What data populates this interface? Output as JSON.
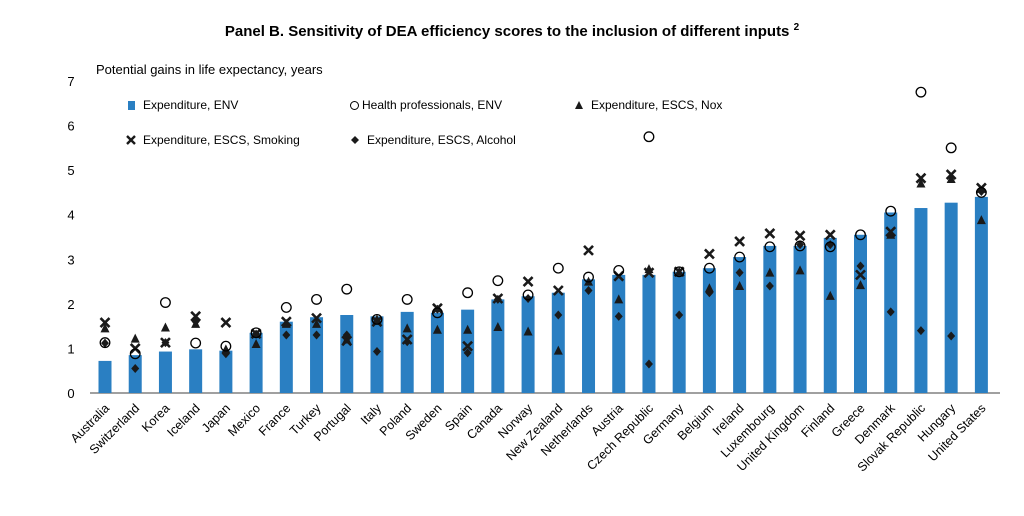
{
  "title": {
    "text": "Panel B. Sensitivity of DEA efficiency scores to the inclusion of different inputs",
    "sup": "2"
  },
  "y_axis_label": "Potential gains in life expectancy, years",
  "colors": {
    "bar": "#2a7fc2",
    "markers": "#1a1a1a"
  },
  "legend": {
    "bar": "Expenditure, ENV",
    "circle": "Health professionals, ENV",
    "triangle": "Expenditure, ESCS, Nox",
    "cross": "Expenditure, ESCS, Smoking",
    "diamond": "Expenditure, ESCS, Alcohol"
  },
  "chart_data": {
    "type": "bar",
    "title": "Panel B. Sensitivity of DEA efficiency scores to the inclusion of different inputs",
    "ylabel": "Potential gains in life expectancy, years",
    "ylim": [
      0,
      7
    ],
    "yticks": [
      0,
      1,
      2,
      3,
      4,
      5,
      6,
      7
    ],
    "grid": false,
    "categories": [
      "Australia",
      "Switzerland",
      "Korea",
      "Iceland",
      "Japan",
      "Mexico",
      "France",
      "Turkey",
      "Portugal",
      "Italy",
      "Poland",
      "Sweden",
      "Spain",
      "Canada",
      "Norway",
      "New Zealand",
      "Netherlands",
      "Austria",
      "Czech Republic",
      "Germany",
      "Belgium",
      "Ireland",
      "Luxembourg",
      "United Kingdom",
      "Finland",
      "Greece",
      "Denmark",
      "Slovak Republic",
      "Hungary",
      "United States"
    ],
    "series": [
      {
        "name": "Expenditure, ENV",
        "marker": "bar",
        "values": [
          0.72,
          0.85,
          0.93,
          0.98,
          0.95,
          1.35,
          1.6,
          1.7,
          1.75,
          1.72,
          1.82,
          1.8,
          1.87,
          2.1,
          2.17,
          2.25,
          2.55,
          2.65,
          2.65,
          2.72,
          2.8,
          3.05,
          3.3,
          3.3,
          3.48,
          3.55,
          4.05,
          4.15,
          4.27,
          4.4
        ]
      },
      {
        "name": "Health professionals, ENV",
        "marker": "circle",
        "values": [
          1.13,
          0.88,
          2.03,
          1.12,
          1.05,
          1.35,
          1.92,
          2.1,
          2.33,
          1.65,
          2.1,
          1.8,
          2.25,
          2.52,
          2.2,
          2.8,
          2.6,
          2.75,
          5.75,
          2.72,
          2.8,
          3.05,
          3.28,
          3.3,
          3.28,
          3.55,
          4.08,
          6.75,
          5.5,
          4.5
        ]
      },
      {
        "name": "Expenditure, ESCS, Nox",
        "marker": "triangle",
        "values": [
          1.45,
          1.22,
          1.47,
          1.55,
          0.98,
          1.1,
          1.55,
          1.55,
          1.2,
          1.65,
          1.45,
          1.42,
          1.42,
          1.48,
          1.38,
          0.95,
          2.5,
          2.1,
          2.78,
          2.72,
          2.35,
          2.4,
          2.7,
          2.75,
          2.18,
          2.42,
          3.55,
          4.7,
          4.8,
          3.88
        ]
      },
      {
        "name": "Expenditure, ESCS, Smoking",
        "marker": "cross",
        "values": [
          1.58,
          1.0,
          1.13,
          1.72,
          1.58,
          1.33,
          1.6,
          1.68,
          1.17,
          1.6,
          1.2,
          1.9,
          1.05,
          2.12,
          2.5,
          2.3,
          3.2,
          2.62,
          2.7,
          2.72,
          3.12,
          3.4,
          3.58,
          3.53,
          3.55,
          2.65,
          3.62,
          4.82,
          4.9,
          4.6
        ]
      },
      {
        "name": "Expenditure, ESCS, Alcohol",
        "marker": "diamond",
        "values": [
          1.12,
          0.55,
          1.13,
          1.6,
          0.88,
          1.32,
          1.3,
          1.3,
          1.3,
          0.93,
          1.15,
          1.88,
          0.9,
          2.1,
          2.12,
          1.75,
          2.3,
          1.72,
          0.65,
          1.75,
          2.25,
          2.7,
          2.4,
          3.33,
          3.33,
          2.85,
          1.82,
          1.4,
          1.28,
          4.52
        ]
      }
    ]
  }
}
